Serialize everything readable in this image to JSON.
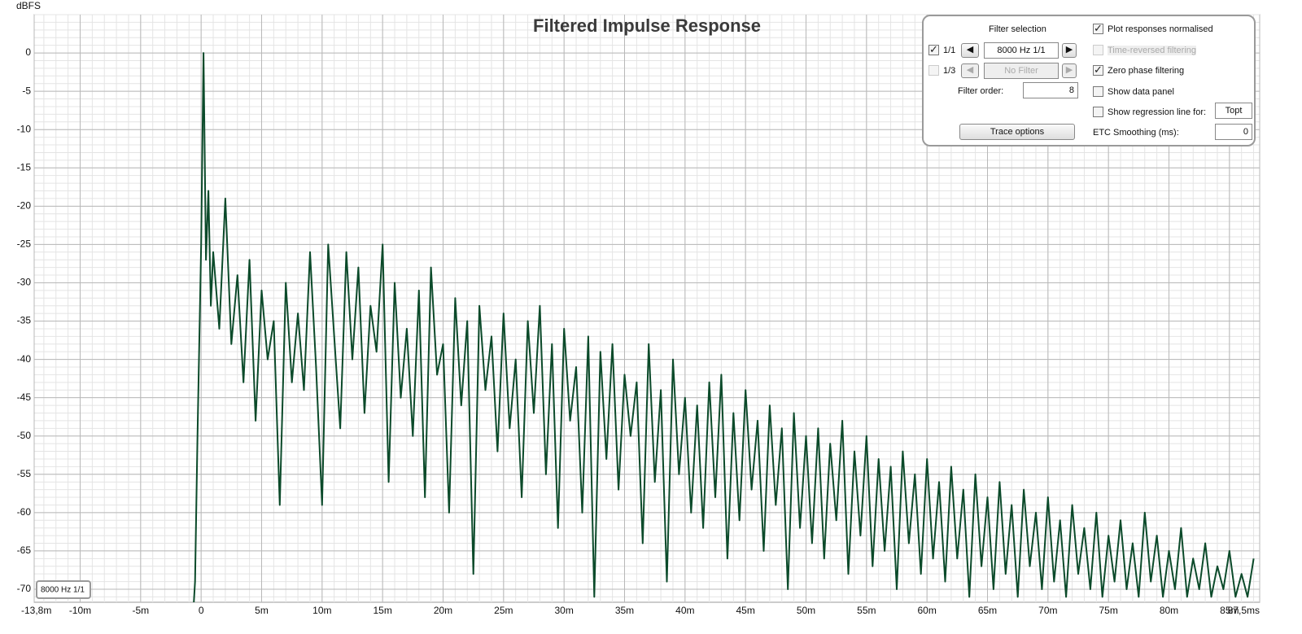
{
  "chart_data": {
    "type": "line",
    "title": "Filtered Impulse Response",
    "ylabel": "dBFS",
    "xlim": [
      -13.8,
      87.5
    ],
    "ylim": [
      -71.7,
      5
    ],
    "xticks": [
      {
        "value": -13.8,
        "label": "-13,8m"
      },
      {
        "value": -10,
        "label": "-10m"
      },
      {
        "value": -5,
        "label": "-5m"
      },
      0,
      {
        "value": 5,
        "label": "5m"
      },
      {
        "value": 10,
        "label": "10m"
      },
      {
        "value": 15,
        "label": "15m"
      },
      {
        "value": 20,
        "label": "20m"
      },
      {
        "value": 25,
        "label": "25m"
      },
      {
        "value": 30,
        "label": "30m"
      },
      {
        "value": 35,
        "label": "35m"
      },
      {
        "value": 40,
        "label": "40m"
      },
      {
        "value": 45,
        "label": "45m"
      },
      {
        "value": 50,
        "label": "50m"
      },
      {
        "value": 55,
        "label": "55m"
      },
      {
        "value": 60,
        "label": "60m"
      },
      {
        "value": 65,
        "label": "65m"
      },
      {
        "value": 70,
        "label": "70m"
      },
      {
        "value": 75,
        "label": "75m"
      },
      {
        "value": 80,
        "label": "80m"
      },
      {
        "value": 85,
        "label": "85m"
      },
      {
        "value": 87.5,
        "label": "87,5ms"
      }
    ],
    "yticks": [
      0,
      -5,
      -10,
      -15,
      -20,
      -25,
      -30,
      -35,
      -40,
      -45,
      -50,
      -55,
      -60,
      -65,
      -70
    ],
    "grid": true,
    "series": [
      {
        "name": "8000 Hz 1/1",
        "color": "#0b4a2a",
        "x": [
          -0.6,
          -0.5,
          -0.3,
          0,
          0.2,
          0.4,
          0.6,
          0.8,
          1,
          1.5,
          2,
          2.5,
          3,
          3.5,
          4,
          4.5,
          5,
          5.5,
          6,
          6.5,
          7,
          7.5,
          8,
          8.5,
          9,
          9.5,
          10,
          10.5,
          11,
          11.5,
          12,
          12.5,
          13,
          13.5,
          14,
          14.5,
          15,
          15.5,
          16,
          16.5,
          17,
          17.5,
          18,
          18.5,
          19,
          19.5,
          20,
          20.5,
          21,
          21.5,
          22,
          22.5,
          23,
          23.5,
          24,
          24.5,
          25,
          25.5,
          26,
          26.5,
          27,
          27.5,
          28,
          28.5,
          29,
          29.5,
          30,
          30.5,
          31,
          31.5,
          32,
          32.5,
          33,
          33.5,
          34,
          34.5,
          35,
          35.5,
          36,
          36.5,
          37,
          37.5,
          38,
          38.5,
          39,
          39.5,
          40,
          40.5,
          41,
          41.5,
          42,
          42.5,
          43,
          43.5,
          44,
          44.5,
          45,
          45.5,
          46,
          46.5,
          47,
          47.5,
          48,
          48.5,
          49,
          49.5,
          50,
          50.5,
          51,
          51.5,
          52,
          52.5,
          53,
          53.5,
          54,
          54.5,
          55,
          55.5,
          56,
          56.5,
          57,
          57.5,
          58,
          58.5,
          59,
          59.5,
          60,
          60.5,
          61,
          61.5,
          62,
          62.5,
          63,
          63.5,
          64,
          64.5,
          65,
          65.5,
          66,
          66.5,
          67,
          67.5,
          68,
          68.5,
          69,
          69.5,
          70,
          70.5,
          71,
          71.5,
          72,
          72.5,
          73,
          73.5,
          74,
          74.5,
          75,
          75.5,
          76,
          76.5,
          77,
          77.5,
          78,
          78.5,
          79,
          79.5,
          80,
          80.5,
          81,
          81.5,
          82,
          82.5,
          83,
          83.5,
          84,
          84.5,
          85,
          85.5,
          86,
          86.5,
          87
        ],
        "values": [
          -71.7,
          -69,
          -50,
          -25,
          0,
          -27,
          -18,
          -33,
          -26,
          -36,
          -19,
          -38,
          -29,
          -43,
          -27,
          -48,
          -31,
          -40,
          -35,
          -59,
          -30,
          -43,
          -34,
          -44,
          -26,
          -41,
          -59,
          -25,
          -37,
          -49,
          -26,
          -40,
          -28,
          -47,
          -33,
          -39,
          -25,
          -56,
          -30,
          -45,
          -36,
          -50,
          -31,
          -58,
          -28,
          -42,
          -38,
          -60,
          -32,
          -46,
          -35,
          -68,
          -33,
          -44,
          -37,
          -52,
          -34,
          -49,
          -40,
          -58,
          -35,
          -47,
          -33,
          -55,
          -38,
          -62,
          -36,
          -48,
          -41,
          -60,
          -37,
          -71,
          -39,
          -53,
          -38,
          -57,
          -42,
          -50,
          -43,
          -64,
          -38,
          -56,
          -44,
          -69,
          -40,
          -55,
          -45,
          -60,
          -46,
          -62,
          -43,
          -58,
          -42,
          -66,
          -47,
          -61,
          -44,
          -57,
          -48,
          -65,
          -46,
          -59,
          -49,
          -70,
          -47,
          -62,
          -50,
          -64,
          -49,
          -66,
          -51,
          -61,
          -48,
          -68,
          -52,
          -63,
          -50,
          -67,
          -53,
          -65,
          -54,
          -70,
          -52,
          -64,
          -55,
          -68,
          -53,
          -66,
          -56,
          -69,
          -54,
          -66,
          -57,
          -71,
          -55,
          -67,
          -58,
          -70,
          -56,
          -68,
          -59,
          -71,
          -57,
          -67,
          -60,
          -70,
          -58,
          -69,
          -61,
          -71,
          -59,
          -68,
          -62,
          -70,
          -60,
          -71,
          -63,
          -69,
          -61,
          -70,
          -64,
          -71,
          -60,
          -69,
          -63,
          -71,
          -65,
          -70,
          -62,
          -71,
          -66,
          -70,
          -64,
          -71,
          -67,
          -70,
          -65,
          -71,
          -68,
          -71,
          -66
        ]
      }
    ]
  },
  "panel": {
    "title": "Filter selection",
    "rows": [
      {
        "label": "1/1",
        "checked": true,
        "value": "8000 Hz 1/1",
        "enabled": true
      },
      {
        "label": "1/3",
        "checked": false,
        "value": "No Filter",
        "enabled": false
      }
    ],
    "order_label": "Filter order:",
    "order": 8,
    "button": "Trace options",
    "options": [
      {
        "label": "Plot responses normalised",
        "checked": true,
        "enabled": true
      },
      {
        "label": "Time-reversed filtering",
        "checked": false,
        "enabled": false
      },
      {
        "label": "Zero phase filtering",
        "checked": true,
        "enabled": true
      },
      {
        "label": "Show data panel",
        "checked": false,
        "enabled": true
      },
      {
        "label": "Show regression line for:",
        "checked": false,
        "enabled": true
      }
    ],
    "regression_value": "Topt",
    "smoothing_label": "ETC Smoothing (ms):",
    "smoothing": 0
  }
}
